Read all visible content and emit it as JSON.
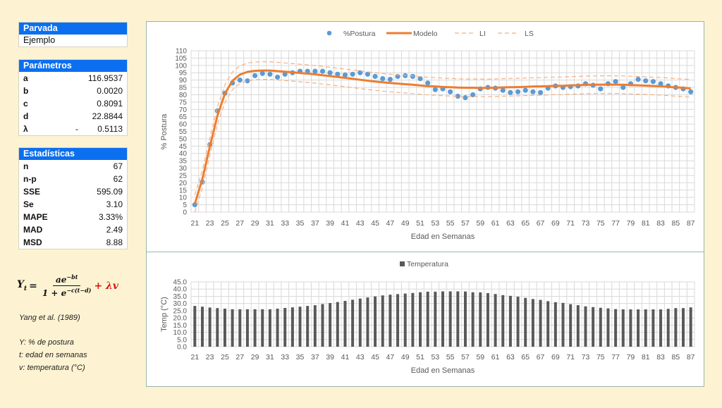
{
  "parvada": {
    "header": "Parvada",
    "value": "Ejemplo"
  },
  "parametros": {
    "header": "Parámetros",
    "rows": [
      {
        "key": "a",
        "sign": "",
        "value": "116.9537"
      },
      {
        "key": "b",
        "sign": "",
        "value": "0.0020"
      },
      {
        "key": "c",
        "sign": "",
        "value": "0.8091"
      },
      {
        "key": "d",
        "sign": "",
        "value": "22.8844"
      },
      {
        "key": "λ",
        "sign": "-",
        "value": "0.5113"
      }
    ]
  },
  "estadisticas": {
    "header": "Estadísticas",
    "rows": [
      {
        "key": "n",
        "value": "67"
      },
      {
        "key": "n-p",
        "value": "62"
      },
      {
        "key": "SSE",
        "value": "595.09"
      },
      {
        "key": "Se",
        "value": "3.10"
      },
      {
        "key": "MAPE",
        "value": "3.33%"
      },
      {
        "key": "MAD",
        "value": "2.49"
      },
      {
        "key": "MSD",
        "value": "8.88"
      }
    ]
  },
  "formula": {
    "lhs": "Y",
    "lhs_sub": "t",
    "eq": "=",
    "numerator": "ae",
    "numerator_exp": "−bt",
    "denominator": "1 + e",
    "denominator_exp": "−c(t−d)",
    "extra": "+ λv"
  },
  "notes": {
    "reference": "Yang et al. (1989)",
    "y": "Y: % de postura",
    "t": "t: edad en semanas",
    "v": "v: temperatura (°C)"
  },
  "colors": {
    "header_blue": "#0b6ff0",
    "postura": "#5b9bd5",
    "modelo": "#ed7d31",
    "limits": "#f4b183",
    "temperatura": "#595959",
    "background": "#fdf3d2"
  },
  "chart_data": [
    {
      "type": "line",
      "xlabel": "Edad en Semanas",
      "ylabel": "% Postura",
      "ylim": [
        0,
        110
      ],
      "ytick_step": 5,
      "grid": true,
      "legend": "top",
      "x": [
        21,
        22,
        23,
        24,
        25,
        26,
        27,
        28,
        29,
        30,
        31,
        32,
        33,
        34,
        35,
        36,
        37,
        38,
        39,
        40,
        41,
        42,
        43,
        44,
        45,
        46,
        47,
        48,
        49,
        50,
        51,
        52,
        53,
        54,
        55,
        56,
        57,
        58,
        59,
        60,
        61,
        62,
        63,
        64,
        65,
        66,
        67,
        68,
        69,
        70,
        71,
        72,
        73,
        74,
        75,
        76,
        77,
        78,
        79,
        80,
        81,
        82,
        83,
        84,
        85,
        86,
        87
      ],
      "series": [
        {
          "name": "%Postura",
          "style": "scatter",
          "values": [
            5,
            20.5,
            46,
            69,
            81,
            88,
            90,
            89.5,
            93,
            94.5,
            94,
            92,
            94,
            95,
            96,
            96,
            96,
            96,
            95,
            94,
            93.5,
            94,
            95,
            94,
            92.5,
            91,
            90.5,
            92.5,
            93,
            92.5,
            91,
            88,
            83.5,
            84,
            82,
            79,
            78,
            80,
            84,
            85,
            84.5,
            83,
            81.5,
            82,
            83,
            82,
            81.5,
            84.5,
            86,
            85,
            85.5,
            86,
            87.5,
            86.5,
            84,
            87.5,
            89,
            85,
            87.5,
            90.5,
            89.5,
            89,
            87.5,
            86,
            85,
            84,
            82
          ]
        },
        {
          "name": "Modelo",
          "style": "line",
          "values": [
            5.6,
            22.5,
            44.6,
            65.6,
            80.7,
            89.5,
            93.7,
            95.6,
            96.3,
            96.5,
            96.5,
            96.1,
            95.7,
            95.3,
            94.8,
            94.4,
            93.9,
            93.3,
            92.7,
            92.1,
            91.5,
            90.9,
            90.2,
            89.6,
            89.0,
            88.5,
            88.0,
            87.6,
            87.2,
            86.8,
            86.3,
            85.9,
            85.7,
            85.3,
            85.1,
            84.9,
            84.8,
            84.8,
            84.7,
            84.7,
            84.8,
            85.0,
            85.1,
            85.2,
            85.4,
            85.6,
            85.7,
            85.9,
            86.1,
            86.1,
            86.4,
            86.5,
            86.7,
            86.8,
            86.9,
            86.9,
            86.9,
            86.8,
            86.6,
            86.4,
            86.2,
            86.0,
            85.8,
            85.4,
            85.0,
            84.8,
            84.3
          ]
        },
        {
          "name": "LI",
          "style": "dashed",
          "values": [
            0,
            16.5,
            38.6,
            59.6,
            74.7,
            83.5,
            87.7,
            89.6,
            90.3,
            90.5,
            90.5,
            90.1,
            89.7,
            89.3,
            88.8,
            88.4,
            87.9,
            87.3,
            86.7,
            86.1,
            85.5,
            84.9,
            84.2,
            83.6,
            83.0,
            82.5,
            82.0,
            81.6,
            81.2,
            80.8,
            80.3,
            79.9,
            79.7,
            79.3,
            79.1,
            78.9,
            78.8,
            78.8,
            78.7,
            78.7,
            78.8,
            79.0,
            79.1,
            79.2,
            79.4,
            79.6,
            79.7,
            79.9,
            80.1,
            80.1,
            80.4,
            80.5,
            80.7,
            80.8,
            80.9,
            80.9,
            80.9,
            80.8,
            80.6,
            80.4,
            80.2,
            80.0,
            79.8,
            79.4,
            79.0,
            78.8,
            78.3
          ]
        },
        {
          "name": "LS",
          "style": "dashed",
          "values": [
            11.6,
            28.5,
            50.6,
            71.6,
            86.7,
            95.5,
            99.7,
            101.6,
            102.3,
            102.5,
            102.5,
            102.1,
            101.7,
            101.3,
            100.8,
            100.4,
            99.9,
            99.3,
            98.7,
            98.1,
            97.5,
            96.9,
            96.2,
            95.6,
            95.0,
            94.5,
            94.0,
            93.6,
            93.2,
            92.8,
            92.3,
            91.9,
            91.7,
            91.3,
            91.1,
            90.9,
            90.8,
            90.8,
            90.7,
            90.7,
            90.8,
            91.0,
            91.1,
            91.2,
            91.4,
            91.6,
            91.7,
            91.9,
            92.1,
            92.1,
            92.4,
            92.5,
            92.7,
            92.8,
            92.9,
            92.9,
            92.9,
            92.8,
            92.6,
            92.4,
            92.2,
            92.0,
            91.8,
            91.4,
            91.0,
            90.8,
            90.3
          ]
        }
      ]
    },
    {
      "type": "bar",
      "xlabel": "Edad en Semanas",
      "ylabel": "Temp (°C)",
      "ylim": [
        0,
        45
      ],
      "ytick_step": 5,
      "grid": true,
      "legend": "top",
      "x": [
        21,
        22,
        23,
        24,
        25,
        26,
        27,
        28,
        29,
        30,
        31,
        32,
        33,
        34,
        35,
        36,
        37,
        38,
        39,
        40,
        41,
        42,
        43,
        44,
        45,
        46,
        47,
        48,
        49,
        50,
        51,
        52,
        53,
        54,
        55,
        56,
        57,
        58,
        59,
        60,
        61,
        62,
        63,
        64,
        65,
        66,
        67,
        68,
        69,
        70,
        71,
        72,
        73,
        74,
        75,
        76,
        77,
        78,
        79,
        80,
        81,
        82,
        83,
        84,
        85,
        86,
        87
      ],
      "series": [
        {
          "name": "Temperatura",
          "values": [
            28.3,
            27.8,
            27.2,
            26.8,
            26.4,
            26,
            26,
            26,
            26,
            26,
            26,
            26.4,
            26.9,
            27.3,
            27.8,
            28.3,
            28.8,
            29.6,
            30.3,
            31,
            31.8,
            32.6,
            33.4,
            34.2,
            34.9,
            35.6,
            36.1,
            36.5,
            36.9,
            37.3,
            37.8,
            38.2,
            38.2,
            38.4,
            38.4,
            38.4,
            38.3,
            37.8,
            37.7,
            37.2,
            36.6,
            35.8,
            35.3,
            34.7,
            33.9,
            33.1,
            32.5,
            31.6,
            30.9,
            30.4,
            29.5,
            28.8,
            28.0,
            27.5,
            27.0,
            26.6,
            26.1,
            25.9,
            25.9,
            25.9,
            25.9,
            25.9,
            25.9,
            26.3,
            26.8,
            26.8,
            27.3
          ]
        }
      ]
    }
  ]
}
